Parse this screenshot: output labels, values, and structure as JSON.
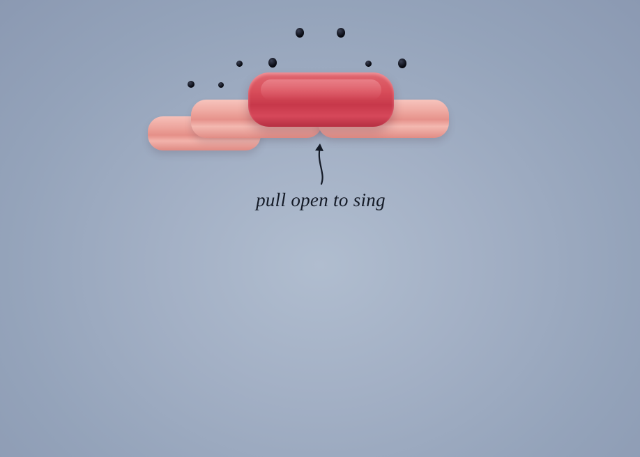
{
  "scene": {
    "hint_text": "pull open to sing",
    "colors": {
      "background": "#a3b0c5",
      "lip_light": "#eea79f",
      "lip_dark": "#d84d5a",
      "notes": "#0b0d16",
      "text": "#141a26"
    },
    "icons": {
      "arrow": "curved-arrow-up-icon",
      "notes": "music-note-dot-icon"
    }
  }
}
